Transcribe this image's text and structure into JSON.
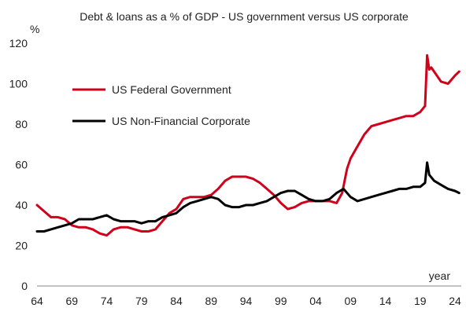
{
  "chart_data": {
    "type": "line",
    "title": "Debt & loans as a % of GDP - US government versus US corporate",
    "y_unit": "%",
    "xlabel": "year",
    "xlim": [
      1964,
      2024.9
    ],
    "ylim": [
      0,
      120
    ],
    "x_ticks": [
      1964,
      1969,
      1974,
      1979,
      1984,
      1989,
      1994,
      1999,
      2004,
      2009,
      2014,
      2019,
      2024
    ],
    "x_tick_labels": [
      "64",
      "69",
      "74",
      "79",
      "84",
      "89",
      "94",
      "99",
      "04",
      "09",
      "14",
      "19",
      "24"
    ],
    "y_ticks": [
      0,
      20,
      40,
      60,
      80,
      100,
      120
    ],
    "y_tick_labels": [
      "0",
      "20",
      "40",
      "60",
      "80",
      "100",
      "120"
    ],
    "grid": false,
    "legend_position": "top-left",
    "series": [
      {
        "name": "US Federal Government",
        "color": "#d0021b",
        "x": [
          1964,
          1965,
          1966,
          1967,
          1968,
          1969,
          1970,
          1971,
          1972,
          1973,
          1974,
          1975,
          1976,
          1977,
          1978,
          1979,
          1980,
          1981,
          1982,
          1983,
          1984,
          1985,
          1986,
          1987,
          1988,
          1989,
          1990,
          1991,
          1992,
          1993,
          1994,
          1995,
          1996,
          1997,
          1998,
          1999,
          2000,
          2001,
          2002,
          2003,
          2004,
          2005,
          2006,
          2007,
          2007.8,
          2008.5,
          2009,
          2010,
          2011,
          2012,
          2013,
          2014,
          2015,
          2016,
          2017,
          2018,
          2019,
          2019.7,
          2020,
          2020.3,
          2020.6,
          2021,
          2022,
          2023,
          2024,
          2024.6
        ],
        "values": [
          40,
          37,
          34,
          34,
          33,
          30,
          29,
          29,
          28,
          26,
          25,
          28,
          29,
          29,
          28,
          27,
          27,
          28,
          32,
          36,
          38,
          43,
          44,
          44,
          44,
          45,
          48,
          52,
          54,
          54,
          54,
          53,
          51,
          48,
          45,
          41,
          38,
          39,
          41,
          42,
          42,
          42,
          42,
          41,
          46,
          58,
          63,
          69,
          75,
          79,
          80,
          81,
          82,
          83,
          84,
          84,
          86,
          89,
          114,
          107,
          108,
          106,
          101,
          100,
          104,
          106
        ]
      },
      {
        "name": "US Non-Financial Corporate",
        "color": "#000000",
        "x": [
          1964,
          1965,
          1966,
          1967,
          1968,
          1969,
          1970,
          1971,
          1972,
          1973,
          1974,
          1975,
          1976,
          1977,
          1978,
          1979,
          1980,
          1981,
          1982,
          1983,
          1984,
          1985,
          1986,
          1987,
          1988,
          1989,
          1990,
          1991,
          1992,
          1993,
          1994,
          1995,
          1996,
          1997,
          1998,
          1999,
          2000,
          2001,
          2002,
          2003,
          2004,
          2005,
          2006,
          2007,
          2008,
          2009,
          2010,
          2011,
          2012,
          2013,
          2014,
          2015,
          2016,
          2017,
          2018,
          2019,
          2019.7,
          2020,
          2020.3,
          2021,
          2022,
          2023,
          2024,
          2024.6
        ],
        "values": [
          27,
          27,
          28,
          29,
          30,
          31,
          33,
          33,
          33,
          34,
          35,
          33,
          32,
          32,
          32,
          31,
          32,
          32,
          34,
          35,
          36,
          39,
          41,
          42,
          43,
          44,
          43,
          40,
          39,
          39,
          40,
          40,
          41,
          42,
          44,
          46,
          47,
          47,
          45,
          43,
          42,
          42,
          43,
          46,
          48,
          44,
          42,
          43,
          44,
          45,
          46,
          47,
          48,
          48,
          49,
          49,
          51,
          61,
          55,
          52,
          50,
          48,
          47,
          46
        ]
      }
    ]
  }
}
